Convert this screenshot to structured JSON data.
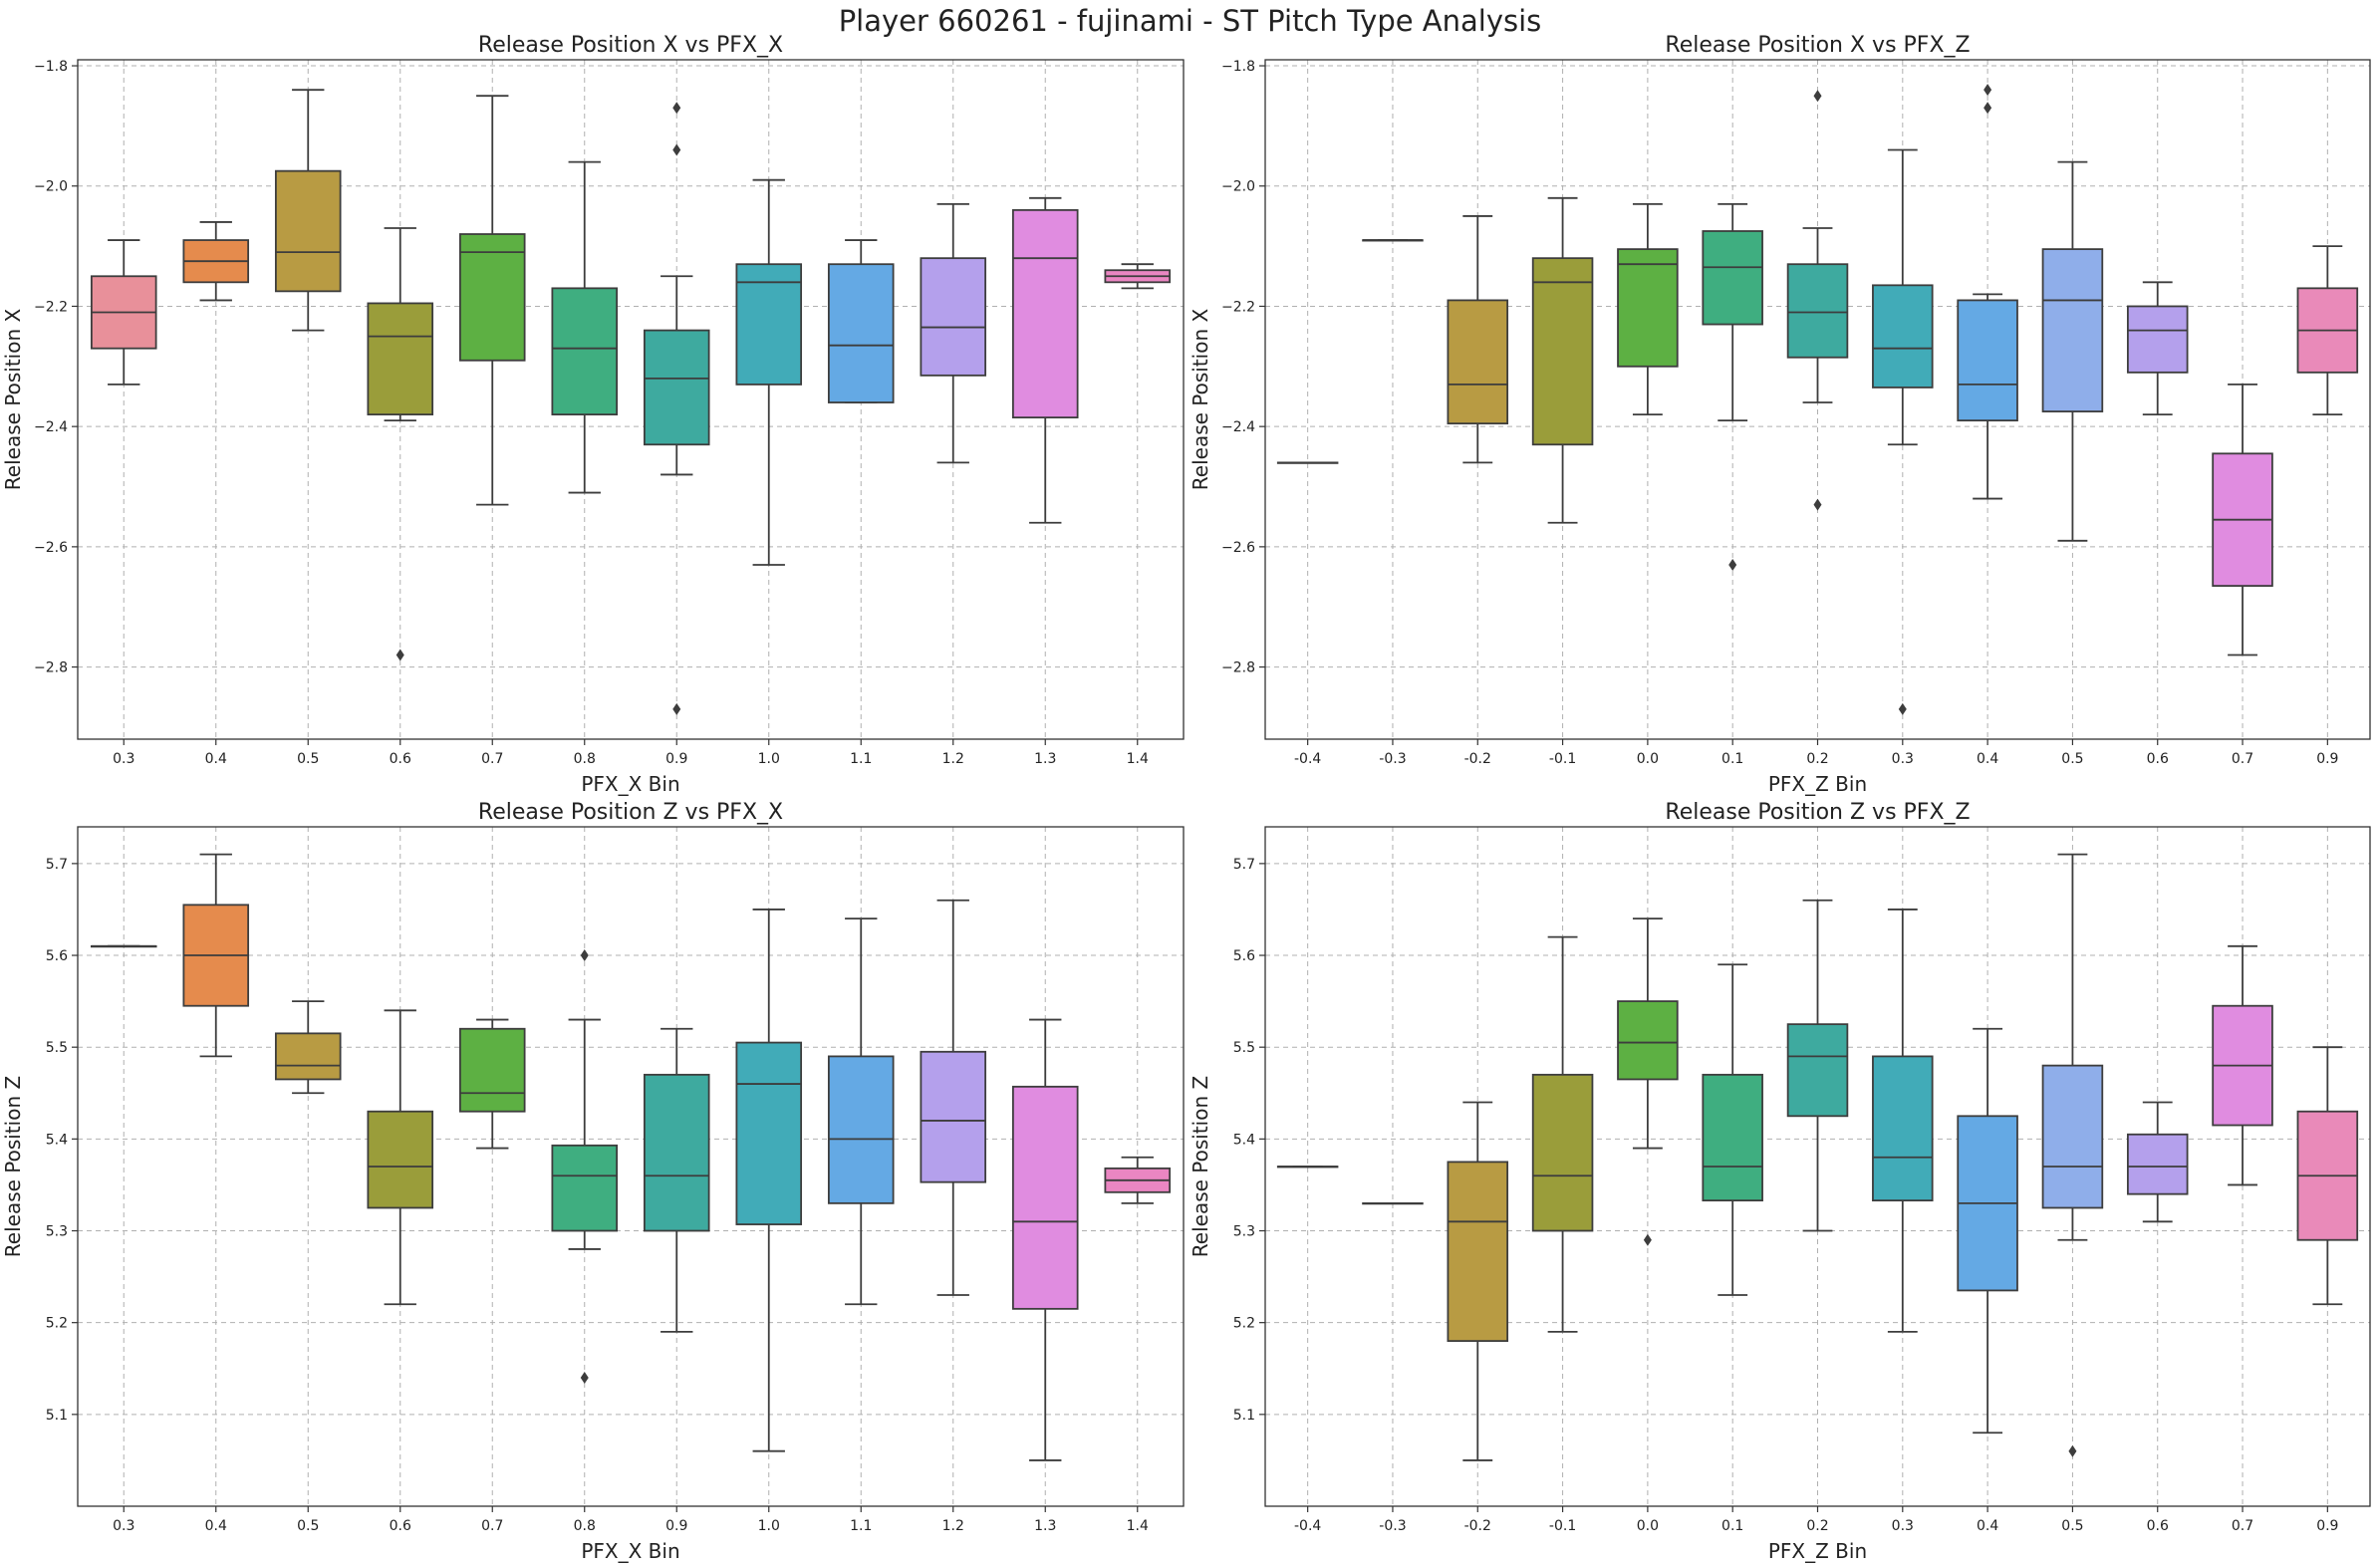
{
  "figure": {
    "title": "Player 660261 - fujinami - ST Pitch Type Analysis"
  },
  "palette": [
    "#e8909a",
    "#e58b4d",
    "#b89b43",
    "#9a9d3a",
    "#5db043",
    "#3fae80",
    "#3eaa9f",
    "#41abb8",
    "#64a9e4",
    "#b4a0ec",
    "#e08ce0",
    "#ea86c2",
    "#e98ab9"
  ],
  "chart_data": [
    {
      "type": "box",
      "title": "Release Position X vs PFX_X",
      "xlabel": "PFX_X Bin",
      "ylabel": "Release Position X",
      "ylim": [
        -2.92,
        -1.79
      ],
      "yticks": [
        -2.8,
        -2.6,
        -2.4,
        -2.2,
        -2.0,
        -1.8
      ],
      "categories": [
        "0.3",
        "0.4",
        "0.5",
        "0.6",
        "0.7",
        "0.8",
        "0.9",
        "1.0",
        "1.1",
        "1.2",
        "1.3",
        "1.4"
      ],
      "colors": [
        "#e8909a",
        "#e58b4d",
        "#b89b43",
        "#9a9d3a",
        "#5db043",
        "#3fae80",
        "#3eaa9f",
        "#41abb8",
        "#64a9e4",
        "#b4a0ec",
        "#e08ce0",
        "#ea86c2"
      ],
      "boxes": [
        {
          "whislo": -2.33,
          "q1": -2.27,
          "med": -2.21,
          "q3": -2.15,
          "whishi": -2.09,
          "fliers": []
        },
        {
          "whislo": -2.19,
          "q1": -2.16,
          "med": -2.125,
          "q3": -2.09,
          "whishi": -2.06,
          "fliers": []
        },
        {
          "whislo": -2.24,
          "q1": -2.175,
          "med": -2.11,
          "q3": -1.975,
          "whishi": -1.84,
          "fliers": []
        },
        {
          "whislo": -2.39,
          "q1": -2.38,
          "med": -2.25,
          "q3": -2.195,
          "whishi": -2.07,
          "fliers": [
            -2.78
          ]
        },
        {
          "whislo": -2.53,
          "q1": -2.29,
          "med": -2.11,
          "q3": -2.08,
          "whishi": -1.85,
          "fliers": []
        },
        {
          "whislo": -2.51,
          "q1": -2.38,
          "med": -2.27,
          "q3": -2.17,
          "whishi": -1.96,
          "fliers": []
        },
        {
          "whislo": -2.48,
          "q1": -2.43,
          "med": -2.32,
          "q3": -2.24,
          "whishi": -2.15,
          "fliers": [
            -1.87,
            -1.94,
            -2.87
          ]
        },
        {
          "whislo": -2.63,
          "q1": -2.33,
          "med": -2.16,
          "q3": -2.13,
          "whishi": -1.99,
          "fliers": []
        },
        {
          "whislo": -2.36,
          "q1": -2.36,
          "med": -2.265,
          "q3": -2.13,
          "whishi": -2.09,
          "fliers": []
        },
        {
          "whislo": -2.46,
          "q1": -2.315,
          "med": -2.235,
          "q3": -2.12,
          "whishi": -2.03,
          "fliers": []
        },
        {
          "whislo": -2.56,
          "q1": -2.385,
          "med": -2.12,
          "q3": -2.04,
          "whishi": -2.02,
          "fliers": []
        },
        {
          "whislo": -2.17,
          "q1": -2.16,
          "med": -2.15,
          "q3": -2.14,
          "whishi": -2.13,
          "fliers": []
        }
      ]
    },
    {
      "type": "box",
      "title": "Release Position X vs PFX_Z",
      "xlabel": "PFX_Z Bin",
      "ylabel": "Release Position X",
      "ylim": [
        -2.92,
        -1.79
      ],
      "yticks": [
        -2.8,
        -2.6,
        -2.4,
        -2.2,
        -2.0,
        -1.8
      ],
      "categories": [
        "-0.4",
        "-0.3",
        "-0.2",
        "-0.1",
        "0.0",
        "0.1",
        "0.2",
        "0.3",
        "0.4",
        "0.5",
        "0.6",
        "0.7",
        "0.9"
      ],
      "colors": [
        "#e8909a",
        "#e58b4d",
        "#b89b43",
        "#9a9d3a",
        "#5db043",
        "#3fae80",
        "#3eaa9f",
        "#41abb8",
        "#64a9e4",
        "#8faeea",
        "#b4a0ec",
        "#e08ce0",
        "#e98ab9"
      ],
      "boxes": [
        {
          "whislo": -2.46,
          "q1": -2.46,
          "med": -2.46,
          "q3": -2.46,
          "whishi": -2.46,
          "fliers": []
        },
        {
          "whislo": -2.09,
          "q1": -2.09,
          "med": -2.09,
          "q3": -2.09,
          "whishi": -2.09,
          "fliers": []
        },
        {
          "whislo": -2.46,
          "q1": -2.395,
          "med": -2.33,
          "q3": -2.19,
          "whishi": -2.05,
          "fliers": []
        },
        {
          "whislo": -2.56,
          "q1": -2.43,
          "med": -2.16,
          "q3": -2.12,
          "whishi": -2.02,
          "fliers": []
        },
        {
          "whislo": -2.38,
          "q1": -2.3,
          "med": -2.13,
          "q3": -2.105,
          "whishi": -2.03,
          "fliers": []
        },
        {
          "whislo": -2.39,
          "q1": -2.23,
          "med": -2.135,
          "q3": -2.075,
          "whishi": -2.03,
          "fliers": [
            -2.63
          ]
        },
        {
          "whislo": -2.36,
          "q1": -2.285,
          "med": -2.21,
          "q3": -2.13,
          "whishi": -2.07,
          "fliers": [
            -1.85,
            -2.53
          ]
        },
        {
          "whislo": -2.43,
          "q1": -2.335,
          "med": -2.27,
          "q3": -2.165,
          "whishi": -1.94,
          "fliers": [
            -2.87
          ]
        },
        {
          "whislo": -2.52,
          "q1": -2.39,
          "med": -2.33,
          "q3": -2.19,
          "whishi": -2.18,
          "fliers": [
            -1.84,
            -1.87
          ]
        },
        {
          "whislo": -2.59,
          "q1": -2.375,
          "med": -2.19,
          "q3": -2.105,
          "whishi": -1.96,
          "fliers": []
        },
        {
          "whislo": -2.38,
          "q1": -2.31,
          "med": -2.24,
          "q3": -2.2,
          "whishi": -2.16,
          "fliers": []
        },
        {
          "whislo": -2.78,
          "q1": -2.665,
          "med": -2.555,
          "q3": -2.445,
          "whishi": -2.33,
          "fliers": []
        },
        {
          "whislo": -2.38,
          "q1": -2.31,
          "med": -2.24,
          "q3": -2.17,
          "whishi": -2.1,
          "fliers": []
        }
      ]
    },
    {
      "type": "box",
      "title": "Release Position Z vs PFX_X",
      "xlabel": "PFX_X Bin",
      "ylabel": "Release Position Z",
      "ylim": [
        5.0,
        5.74
      ],
      "yticks": [
        5.1,
        5.2,
        5.3,
        5.4,
        5.5,
        5.6,
        5.7
      ],
      "categories": [
        "0.3",
        "0.4",
        "0.5",
        "0.6",
        "0.7",
        "0.8",
        "0.9",
        "1.0",
        "1.1",
        "1.2",
        "1.3",
        "1.4"
      ],
      "colors": [
        "#e8909a",
        "#e58b4d",
        "#b89b43",
        "#9a9d3a",
        "#5db043",
        "#3fae80",
        "#3eaa9f",
        "#41abb8",
        "#64a9e4",
        "#b4a0ec",
        "#e08ce0",
        "#ea86c2"
      ],
      "boxes": [
        {
          "whislo": 5.61,
          "q1": 5.61,
          "med": 5.61,
          "q3": 5.61,
          "whishi": 5.61,
          "fliers": []
        },
        {
          "whislo": 5.49,
          "q1": 5.545,
          "med": 5.6,
          "q3": 5.655,
          "whishi": 5.71,
          "fliers": []
        },
        {
          "whislo": 5.45,
          "q1": 5.465,
          "med": 5.48,
          "q3": 5.515,
          "whishi": 5.55,
          "fliers": []
        },
        {
          "whislo": 5.22,
          "q1": 5.325,
          "med": 5.37,
          "q3": 5.43,
          "whishi": 5.54,
          "fliers": []
        },
        {
          "whislo": 5.39,
          "q1": 5.43,
          "med": 5.45,
          "q3": 5.52,
          "whishi": 5.53,
          "fliers": []
        },
        {
          "whislo": 5.28,
          "q1": 5.3,
          "med": 5.36,
          "q3": 5.393,
          "whishi": 5.53,
          "fliers": [
            5.6,
            5.14
          ]
        },
        {
          "whislo": 5.19,
          "q1": 5.3,
          "med": 5.36,
          "q3": 5.47,
          "whishi": 5.52,
          "fliers": []
        },
        {
          "whislo": 5.06,
          "q1": 5.307,
          "med": 5.46,
          "q3": 5.505,
          "whishi": 5.65,
          "fliers": []
        },
        {
          "whislo": 5.22,
          "q1": 5.33,
          "med": 5.4,
          "q3": 5.49,
          "whishi": 5.64,
          "fliers": []
        },
        {
          "whislo": 5.23,
          "q1": 5.353,
          "med": 5.42,
          "q3": 5.495,
          "whishi": 5.66,
          "fliers": []
        },
        {
          "whislo": 5.05,
          "q1": 5.215,
          "med": 5.31,
          "q3": 5.457,
          "whishi": 5.53,
          "fliers": []
        },
        {
          "whislo": 5.33,
          "q1": 5.342,
          "med": 5.355,
          "q3": 5.368,
          "whishi": 5.38,
          "fliers": []
        }
      ]
    },
    {
      "type": "box",
      "title": "Release Position Z vs PFX_Z",
      "xlabel": "PFX_Z Bin",
      "ylabel": "Release Position Z",
      "ylim": [
        5.0,
        5.74
      ],
      "yticks": [
        5.1,
        5.2,
        5.3,
        5.4,
        5.5,
        5.6,
        5.7
      ],
      "categories": [
        "-0.4",
        "-0.3",
        "-0.2",
        "-0.1",
        "0.0",
        "0.1",
        "0.2",
        "0.3",
        "0.4",
        "0.5",
        "0.6",
        "0.7",
        "0.9"
      ],
      "colors": [
        "#e8909a",
        "#e58b4d",
        "#b89b43",
        "#9a9d3a",
        "#5db043",
        "#3fae80",
        "#3eaa9f",
        "#41abb8",
        "#64a9e4",
        "#8faeea",
        "#b4a0ec",
        "#e08ce0",
        "#e98ab9"
      ],
      "boxes": [
        {
          "whislo": 5.37,
          "q1": 5.37,
          "med": 5.37,
          "q3": 5.37,
          "whishi": 5.37,
          "fliers": []
        },
        {
          "whislo": 5.33,
          "q1": 5.33,
          "med": 5.33,
          "q3": 5.33,
          "whishi": 5.33,
          "fliers": []
        },
        {
          "whislo": 5.05,
          "q1": 5.18,
          "med": 5.31,
          "q3": 5.375,
          "whishi": 5.44,
          "fliers": []
        },
        {
          "whislo": 5.19,
          "q1": 5.3,
          "med": 5.36,
          "q3": 5.47,
          "whishi": 5.62,
          "fliers": []
        },
        {
          "whislo": 5.39,
          "q1": 5.465,
          "med": 5.505,
          "q3": 5.55,
          "whishi": 5.64,
          "fliers": [
            5.29
          ]
        },
        {
          "whislo": 5.23,
          "q1": 5.333,
          "med": 5.37,
          "q3": 5.47,
          "whishi": 5.59,
          "fliers": []
        },
        {
          "whislo": 5.3,
          "q1": 5.425,
          "med": 5.49,
          "q3": 5.525,
          "whishi": 5.66,
          "fliers": []
        },
        {
          "whislo": 5.19,
          "q1": 5.333,
          "med": 5.38,
          "q3": 5.49,
          "whishi": 5.65,
          "fliers": []
        },
        {
          "whislo": 5.08,
          "q1": 5.235,
          "med": 5.33,
          "q3": 5.425,
          "whishi": 5.52,
          "fliers": []
        },
        {
          "whislo": 5.29,
          "q1": 5.325,
          "med": 5.37,
          "q3": 5.48,
          "whishi": 5.71,
          "fliers": [
            5.06
          ]
        },
        {
          "whislo": 5.31,
          "q1": 5.34,
          "med": 5.37,
          "q3": 5.405,
          "whishi": 5.44,
          "fliers": []
        },
        {
          "whislo": 5.35,
          "q1": 5.415,
          "med": 5.48,
          "q3": 5.545,
          "whishi": 5.61,
          "fliers": []
        },
        {
          "whislo": 5.22,
          "q1": 5.29,
          "med": 5.36,
          "q3": 5.43,
          "whishi": 5.5,
          "fliers": []
        }
      ]
    }
  ]
}
